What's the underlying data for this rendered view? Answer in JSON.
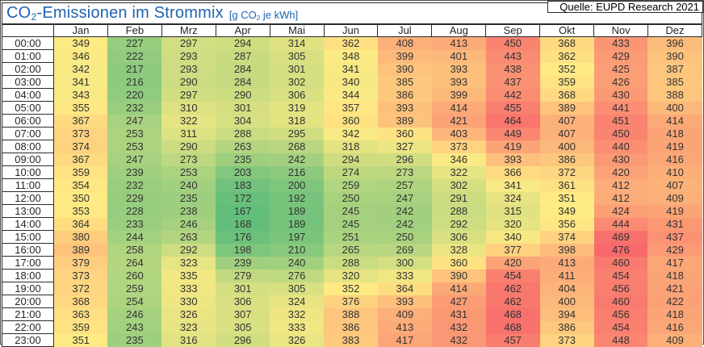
{
  "header": {
    "title_prefix": "CO",
    "title_sub": "2",
    "title_rest": "-Emissionen im Strommix",
    "unit_prefix": "[g CO",
    "unit_sub": "2",
    "unit_rest": " je kWh]",
    "title_color": "#2063B0"
  },
  "source": "Quelle: EUPD Research 2021",
  "chart_data": {
    "type": "heatmap",
    "title": "CO2-Emissionen im Strommix",
    "unit": "g CO2 je kWh",
    "legend_position": "none",
    "grid": false,
    "columns": [
      "Jan",
      "Feb",
      "Mrz",
      "Apr",
      "Mai",
      "Jun",
      "Jul",
      "Aug",
      "Sep",
      "Okt",
      "Nov",
      "Dez"
    ],
    "rows": [
      "00:00",
      "01:00",
      "02:00",
      "03:00",
      "04:00",
      "05:00",
      "06:00",
      "07:00",
      "08:00",
      "09:00",
      "10:00",
      "11:00",
      "12:00",
      "13:00",
      "14:00",
      "15:00",
      "16:00",
      "17:00",
      "18:00",
      "19:00",
      "20:00",
      "21:00",
      "22:00",
      "23:00"
    ],
    "values": [
      [
        349,
        227,
        297,
        294,
        314,
        362,
        408,
        413,
        450,
        368,
        433,
        396
      ],
      [
        346,
        222,
        293,
        287,
        305,
        348,
        399,
        401,
        443,
        362,
        429,
        390
      ],
      [
        342,
        217,
        293,
        284,
        301,
        341,
        390,
        393,
        438,
        352,
        425,
        387
      ],
      [
        341,
        216,
        290,
        284,
        302,
        340,
        385,
        393,
        437,
        359,
        426,
        385
      ],
      [
        343,
        220,
        297,
        290,
        306,
        344,
        386,
        399,
        442,
        368,
        430,
        388
      ],
      [
        355,
        232,
        310,
        301,
        319,
        357,
        393,
        414,
        455,
        389,
        441,
        400
      ],
      [
        367,
        247,
        322,
        304,
        318,
        360,
        389,
        421,
        464,
        407,
        451,
        414
      ],
      [
        373,
        253,
        311,
        288,
        295,
        342,
        360,
        403,
        449,
        407,
        450,
        418
      ],
      [
        374,
        253,
        290,
        263,
        268,
        318,
        327,
        373,
        419,
        400,
        440,
        419
      ],
      [
        367,
        247,
        273,
        235,
        242,
        294,
        296,
        346,
        393,
        386,
        430,
        416
      ],
      [
        359,
        239,
        253,
        203,
        216,
        274,
        273,
        322,
        366,
        372,
        420,
        410
      ],
      [
        354,
        232,
        240,
        183,
        200,
        259,
        257,
        302,
        341,
        361,
        412,
        407
      ],
      [
        350,
        229,
        235,
        172,
        192,
        250,
        247,
        291,
        324,
        351,
        412,
        409
      ],
      [
        353,
        228,
        238,
        167,
        189,
        245,
        242,
        288,
        315,
        349,
        424,
        419
      ],
      [
        364,
        233,
        246,
        168,
        189,
        245,
        242,
        292,
        320,
        356,
        444,
        431
      ],
      [
        380,
        244,
        263,
        176,
        197,
        251,
        250,
        306,
        340,
        374,
        469,
        437
      ],
      [
        389,
        258,
        292,
        198,
        210,
        265,
        269,
        328,
        377,
        398,
        476,
        429
      ],
      [
        379,
        264,
        323,
        239,
        240,
        288,
        300,
        360,
        420,
        413,
        460,
        417
      ],
      [
        373,
        260,
        335,
        279,
        276,
        320,
        333,
        390,
        454,
        411,
        454,
        418
      ],
      [
        372,
        259,
        333,
        301,
        305,
        352,
        364,
        414,
        462,
        404,
        456,
        421
      ],
      [
        368,
        254,
        330,
        306,
        324,
        376,
        393,
        427,
        462,
        400,
        460,
        422
      ],
      [
        363,
        246,
        326,
        307,
        332,
        388,
        409,
        431,
        468,
        394,
        456,
        418
      ],
      [
        359,
        243,
        323,
        305,
        333,
        386,
        413,
        432,
        468,
        386,
        454,
        416
      ],
      [
        351,
        235,
        316,
        296,
        326,
        383,
        417,
        432,
        457,
        373,
        448,
        409
      ]
    ],
    "colorscale": {
      "min_color": "#63BE7B",
      "mid_color": "#FFEB84",
      "max_color": "#F8696B",
      "mid_mode": "median"
    }
  }
}
